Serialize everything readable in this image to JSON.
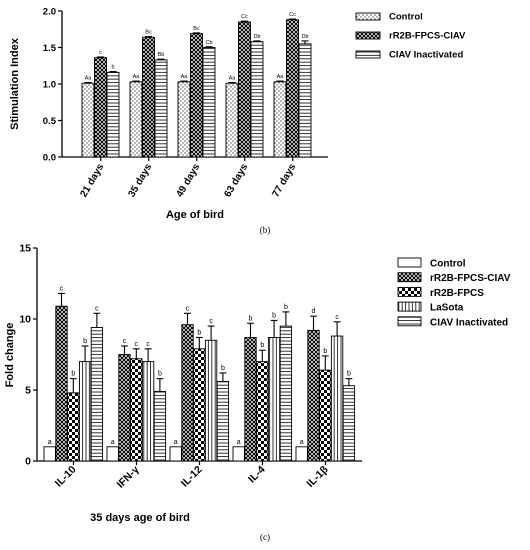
{
  "chart_data": [
    {
      "type": "bar",
      "panel_label": "(b)",
      "xlabel": "Age of bird",
      "ylabel": "Stimulation Index",
      "ylim": [
        0,
        2.0
      ],
      "yticks": [
        "0.0",
        "0.5",
        "1.0",
        "1.5",
        "2.0"
      ],
      "categories": [
        "21 days",
        "35 days",
        "49 days",
        "63 days",
        "77 days"
      ],
      "legend_position": "right",
      "series": [
        {
          "name": "Control",
          "pattern": "dots",
          "values": [
            1.01,
            1.03,
            1.03,
            1.01,
            1.03
          ],
          "errors": [
            0.01,
            0.01,
            0.01,
            0.01,
            0.01
          ],
          "labels": [
            "Aa",
            "Aa",
            "Aa",
            "Aa",
            "Aa"
          ]
        },
        {
          "name": "rR2B-FPCS-CIAV",
          "pattern": "crosshatch",
          "values": [
            1.36,
            1.64,
            1.69,
            1.85,
            1.88
          ],
          "errors": [
            0.01,
            0.01,
            0.01,
            0.01,
            0.01
          ],
          "labels": [
            "c",
            "Bc",
            "Bc",
            "Cc",
            "Cc"
          ]
        },
        {
          "name": "CIAV Inactivated",
          "pattern": "hlines",
          "values": [
            1.16,
            1.33,
            1.5,
            1.58,
            1.55
          ],
          "errors": [
            0.01,
            0.01,
            0.01,
            0.01,
            0.04
          ],
          "labels": [
            "b",
            "Bb",
            "Cb",
            "Db",
            "Db"
          ]
        }
      ]
    },
    {
      "type": "bar",
      "panel_label": "(c)",
      "xlabel": "35 days age of bird",
      "ylabel": "Fold change",
      "ylim": [
        0,
        15
      ],
      "yticks": [
        "0",
        "5",
        "10",
        "15"
      ],
      "categories": [
        "IL-10",
        "IFN-γ",
        "IL-12",
        "IL-4",
        "IL-1β"
      ],
      "legend_position": "right",
      "series": [
        {
          "name": "Control",
          "pattern": "plain",
          "values": [
            1.0,
            1.0,
            1.0,
            1.0,
            1.0
          ],
          "errors": [
            0,
            0,
            0,
            0,
            0
          ],
          "labels": [
            "a",
            "a",
            "a",
            "a",
            "a"
          ]
        },
        {
          "name": "rR2B-FPCS-CIAV",
          "pattern": "crosshatch",
          "values": [
            10.9,
            7.5,
            9.6,
            8.7,
            9.2
          ],
          "errors": [
            0.9,
            0.6,
            0.8,
            1.0,
            1.0
          ],
          "labels": [
            "c",
            "c",
            "c",
            "b",
            "d"
          ]
        },
        {
          "name": "rR2B-FPCS",
          "pattern": "checker",
          "values": [
            4.8,
            7.2,
            7.9,
            7.0,
            6.4
          ],
          "errors": [
            1.0,
            0.7,
            0.8,
            0.8,
            1.0
          ],
          "labels": [
            "b",
            "c",
            "b",
            "b",
            "b"
          ]
        },
        {
          "name": "LaSota",
          "pattern": "vlines",
          "values": [
            7.0,
            7.0,
            8.5,
            8.7,
            8.8
          ],
          "errors": [
            1.1,
            0.9,
            1.0,
            1.2,
            1.0
          ],
          "labels": [
            "b",
            "c",
            "c",
            "b",
            "c"
          ]
        },
        {
          "name": "CIAV Inactivated",
          "pattern": "hlines",
          "values": [
            9.4,
            4.9,
            5.6,
            9.5,
            5.3
          ],
          "errors": [
            1.0,
            0.9,
            0.6,
            1.0,
            0.5
          ],
          "labels": [
            "c",
            "b",
            "b",
            "b",
            "b"
          ]
        }
      ]
    }
  ]
}
